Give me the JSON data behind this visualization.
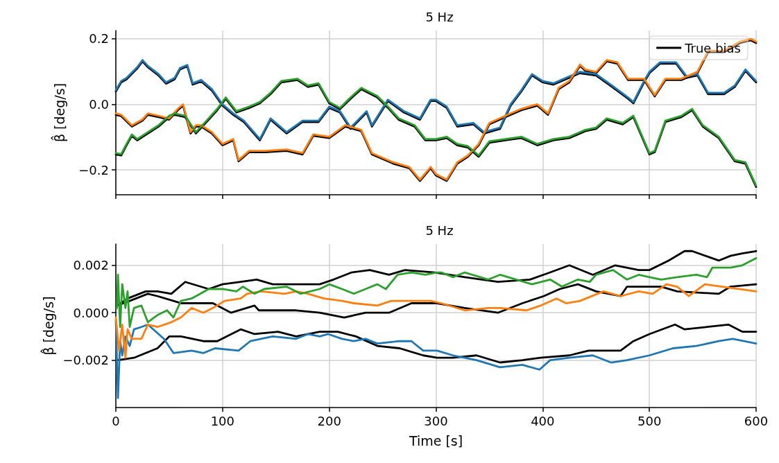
{
  "chart_data": [
    {
      "type": "line",
      "title": "5 Hz",
      "ylabel": "β̂ [deg/s]",
      "xlim": [
        0,
        600
      ],
      "xticks": [
        0,
        100,
        200,
        300,
        400,
        500,
        600
      ],
      "ylim": [
        -0.276,
        0.225
      ],
      "yticks": [
        {
          "value": -0.2,
          "label": "−0.2"
        },
        {
          "value": 0,
          "label": "0.0"
        },
        {
          "value": 0.2,
          "label": "0.2"
        }
      ],
      "grid": true,
      "legend": "top right",
      "tick_labels": "y",
      "series": [
        {
          "name": "True bias",
          "color": "#000000",
          "x": [
            0,
            5,
            10,
            20,
            25,
            30,
            40,
            47,
            55,
            60,
            67,
            72,
            80,
            90,
            100,
            110,
            120,
            135,
            145,
            160,
            175,
            190,
            200,
            210,
            220,
            235,
            240,
            255,
            270,
            285,
            295,
            300,
            310,
            320,
            335,
            345,
            360,
            370,
            380,
            390,
            400,
            410,
            420,
            430,
            435,
            450,
            465,
            480,
            485,
            495,
            500,
            510,
            525,
            535,
            545,
            555,
            570,
            580,
            590,
            600
          ],
          "values": [
            0.039,
            0.067,
            0.076,
            0.109,
            0.131,
            0.113,
            0.088,
            0.063,
            0.076,
            0.106,
            0.116,
            0.06,
            0.07,
            0.042,
            -0.004,
            -0.032,
            -0.054,
            -0.11,
            -0.047,
            -0.089,
            -0.054,
            -0.054,
            -0.011,
            -0.025,
            -0.075,
            -0.025,
            -0.068,
            0.01,
            -0.025,
            -0.047,
            0.01,
            0.01,
            -0.011,
            -0.068,
            -0.061,
            -0.089,
            -0.075,
            -0.004,
            0.039,
            0.088,
            0.067,
            0.06,
            0.074,
            0.088,
            0.095,
            0.088,
            0.053,
            0.017,
            0.003,
            0.067,
            0.095,
            0.124,
            0.124,
            0.081,
            0.088,
            0.031,
            0.031,
            0.053,
            0.102,
            0.067
          ]
        },
        {
          "color": "#000000",
          "x": [
            0,
            5,
            15,
            25,
            30,
            40,
            50,
            58,
            63,
            70,
            75,
            80,
            90,
            100,
            110,
            115,
            125,
            140,
            160,
            175,
            185,
            200,
            215,
            230,
            240,
            260,
            275,
            285,
            295,
            300,
            310,
            320,
            330,
            340,
            350,
            365,
            380,
            395,
            405,
            415,
            425,
            435,
            440,
            450,
            460,
            470,
            480,
            495,
            505,
            515,
            530,
            545,
            555,
            570,
            585,
            595,
            600
          ],
          "values": [
            -0.032,
            -0.036,
            -0.068,
            -0.05,
            -0.032,
            -0.039,
            -0.047,
            -0.018,
            -0.004,
            -0.089,
            -0.068,
            -0.068,
            -0.089,
            -0.125,
            -0.11,
            -0.174,
            -0.146,
            -0.146,
            -0.142,
            -0.153,
            -0.096,
            -0.103,
            -0.068,
            -0.082,
            -0.153,
            -0.181,
            -0.195,
            -0.234,
            -0.195,
            -0.217,
            -0.234,
            -0.181,
            -0.16,
            -0.125,
            -0.061,
            -0.039,
            -0.018,
            -0.004,
            -0.032,
            0.046,
            0.067,
            0.117,
            0.102,
            0.095,
            0.131,
            0.124,
            0.074,
            0.074,
            0.024,
            0.074,
            0.074,
            0.095,
            0.159,
            0.159,
            0.187,
            0.195,
            0.187
          ]
        },
        {
          "color": "#000000",
          "x": [
            0,
            5,
            10,
            15,
            20,
            30,
            40,
            50,
            55,
            65,
            75,
            85,
            95,
            103,
            113,
            125,
            135,
            145,
            155,
            170,
            180,
            190,
            200,
            210,
            220,
            230,
            245,
            255,
            265,
            280,
            290,
            300,
            310,
            320,
            330,
            340,
            350,
            365,
            380,
            395,
            410,
            425,
            440,
            450,
            460,
            475,
            485,
            500,
            505,
            515,
            530,
            540,
            550,
            565,
            580,
            590,
            600
          ],
          "values": [
            -0.153,
            -0.156,
            -0.125,
            -0.096,
            -0.11,
            -0.089,
            -0.068,
            -0.039,
            -0.032,
            -0.039,
            -0.089,
            -0.054,
            -0.018,
            0.017,
            -0.025,
            -0.011,
            0.003,
            0.031,
            0.067,
            0.074,
            0.053,
            0.06,
            0.003,
            -0.015,
            0.017,
            0.046,
            0.021,
            -0.011,
            -0.047,
            -0.068,
            -0.11,
            -0.11,
            -0.103,
            -0.125,
            -0.132,
            -0.16,
            -0.117,
            -0.11,
            -0.103,
            -0.125,
            -0.11,
            -0.103,
            -0.082,
            -0.075,
            -0.047,
            -0.061,
            -0.039,
            -0.153,
            -0.146,
            -0.054,
            -0.039,
            -0.018,
            -0.068,
            -0.103,
            -0.174,
            -0.181,
            -0.252
          ]
        },
        {
          "color": "#1f77b4",
          "x": [
            0,
            5,
            10,
            20,
            25,
            30,
            40,
            47,
            55,
            60,
            67,
            72,
            80,
            90,
            100,
            110,
            120,
            135,
            145,
            160,
            175,
            190,
            200,
            210,
            220,
            235,
            240,
            255,
            270,
            285,
            295,
            300,
            310,
            320,
            335,
            345,
            360,
            370,
            380,
            390,
            400,
            410,
            420,
            430,
            435,
            450,
            465,
            480,
            485,
            495,
            500,
            510,
            525,
            535,
            545,
            555,
            570,
            580,
            590,
            600
          ],
          "values": [
            0.043,
            0.071,
            0.08,
            0.113,
            0.135,
            0.117,
            0.092,
            0.067,
            0.08,
            0.11,
            0.12,
            0.064,
            0.074,
            0.046,
            0.0,
            -0.028,
            -0.05,
            -0.106,
            -0.043,
            -0.085,
            -0.05,
            -0.05,
            -0.007,
            -0.021,
            -0.071,
            -0.021,
            -0.064,
            0.014,
            -0.021,
            -0.043,
            0.014,
            0.014,
            -0.007,
            -0.064,
            -0.057,
            -0.085,
            -0.071,
            0.0,
            0.043,
            0.092,
            0.071,
            0.064,
            0.078,
            0.092,
            0.099,
            0.092,
            0.057,
            0.021,
            0.007,
            0.071,
            0.099,
            0.128,
            0.128,
            0.085,
            0.092,
            0.035,
            0.035,
            0.057,
            0.106,
            0.071
          ]
        },
        {
          "color": "#ff7f0e",
          "x": [
            0,
            5,
            15,
            25,
            30,
            40,
            50,
            58,
            63,
            70,
            75,
            80,
            90,
            100,
            110,
            115,
            125,
            140,
            160,
            175,
            185,
            200,
            215,
            230,
            240,
            260,
            275,
            285,
            295,
            300,
            310,
            320,
            330,
            340,
            350,
            365,
            380,
            395,
            405,
            415,
            425,
            435,
            440,
            450,
            460,
            470,
            480,
            495,
            505,
            515,
            530,
            545,
            555,
            570,
            585,
            595,
            600
          ],
          "values": [
            -0.028,
            -0.032,
            -0.064,
            -0.046,
            -0.028,
            -0.035,
            -0.043,
            -0.014,
            0.0,
            -0.085,
            -0.064,
            -0.064,
            -0.085,
            -0.121,
            -0.106,
            -0.17,
            -0.142,
            -0.142,
            -0.138,
            -0.149,
            -0.092,
            -0.099,
            -0.064,
            -0.078,
            -0.149,
            -0.177,
            -0.191,
            -0.23,
            -0.191,
            -0.213,
            -0.23,
            -0.177,
            -0.156,
            -0.121,
            -0.057,
            -0.035,
            -0.014,
            0.0,
            -0.028,
            0.05,
            0.071,
            0.121,
            0.106,
            0.099,
            0.135,
            0.128,
            0.078,
            0.078,
            0.028,
            0.078,
            0.078,
            0.099,
            0.163,
            0.163,
            0.191,
            0.199,
            0.191
          ]
        },
        {
          "color": "#2ca02c",
          "x": [
            0,
            5,
            10,
            15,
            20,
            30,
            40,
            50,
            55,
            65,
            75,
            85,
            95,
            103,
            113,
            125,
            135,
            145,
            155,
            170,
            180,
            190,
            200,
            210,
            220,
            230,
            245,
            255,
            265,
            280,
            290,
            300,
            310,
            320,
            330,
            340,
            350,
            365,
            380,
            395,
            410,
            425,
            440,
            450,
            460,
            475,
            485,
            500,
            505,
            515,
            530,
            540,
            550,
            565,
            580,
            590,
            600
          ],
          "values": [
            -0.149,
            -0.152,
            -0.121,
            -0.092,
            -0.106,
            -0.085,
            -0.064,
            -0.035,
            -0.028,
            -0.035,
            -0.085,
            -0.05,
            -0.014,
            0.021,
            -0.021,
            -0.007,
            0.007,
            0.035,
            0.071,
            0.078,
            0.057,
            0.064,
            0.007,
            -0.011,
            0.021,
            0.05,
            0.025,
            -0.007,
            -0.043,
            -0.064,
            -0.106,
            -0.106,
            -0.099,
            -0.121,
            -0.128,
            -0.156,
            -0.113,
            -0.106,
            -0.099,
            -0.121,
            -0.106,
            -0.099,
            -0.078,
            -0.071,
            -0.043,
            -0.057,
            -0.035,
            -0.149,
            -0.142,
            -0.05,
            -0.035,
            -0.014,
            -0.064,
            -0.099,
            -0.17,
            -0.177,
            -0.248
          ]
        }
      ]
    },
    {
      "type": "line",
      "title": "5 Hz",
      "xlabel": "Time [s]",
      "ylabel": "β̂ [deg/s]",
      "xlim": [
        0,
        600
      ],
      "xticks": [
        0,
        100,
        200,
        300,
        400,
        500,
        600
      ],
      "ylim": [
        -0.004,
        0.0029
      ],
      "yticks": [
        {
          "value": -0.002,
          "label": "−0.002"
        },
        {
          "value": 0,
          "label": "0.000"
        },
        {
          "value": 0.002,
          "label": "0.002"
        }
      ],
      "grid": true,
      "series": [
        {
          "color": "#000000",
          "x": [
            1,
            11,
            28,
            39,
            52,
            65,
            87,
            100,
            117,
            132,
            147,
            191,
            204,
            221,
            238,
            256,
            271,
            299,
            327,
            358,
            388,
            407,
            425,
            447,
            468,
            490,
            500,
            518,
            533,
            540,
            565,
            576,
            587,
            600
          ],
          "values": [
            0.0003,
            0.0006,
            0.0009,
            0.0009,
            0.0008,
            0.0013,
            0.001,
            0.0012,
            0.0013,
            0.0014,
            0.0012,
            0.0012,
            0.0014,
            0.0017,
            0.0018,
            0.0016,
            0.0018,
            0.0017,
            0.0015,
            0.0013,
            0.0014,
            0.0017,
            0.002,
            0.0016,
            0.002,
            0.0018,
            0.0018,
            0.0022,
            0.0026,
            0.0026,
            0.0022,
            0.0024,
            0.0025,
            0.0026
          ]
        },
        {
          "color": "#000000",
          "x": [
            1,
            13,
            30,
            39,
            54,
            61,
            91,
            108,
            130,
            134,
            169,
            191,
            214,
            234,
            256,
            277,
            301,
            327,
            358,
            381,
            401,
            416,
            433,
            450,
            473,
            479,
            511,
            526,
            565,
            576,
            600
          ],
          "values": [
            0.0003,
            0.0005,
            0.0008,
            0.0007,
            0.0005,
            0.0004,
            0.0004,
            0.0,
            0.0003,
            0.0001,
            0.0001,
            0.0,
            -0.0002,
            0.0,
            0.0,
            0.0004,
            0.0004,
            0.0002,
            0.0,
            0.0004,
            0.0007,
            0.001,
            0.0012,
            0.0009,
            0.0007,
            0.0011,
            0.0011,
            0.0009,
            0.0008,
            0.0011,
            0.0012
          ]
        },
        {
          "color": "#000000",
          "x": [
            2,
            17,
            39,
            50,
            61,
            82,
            95,
            117,
            130,
            152,
            169,
            191,
            208,
            225,
            245,
            266,
            288,
            301,
            316,
            338,
            360,
            381,
            398,
            425,
            443,
            473,
            485,
            500,
            524,
            533,
            554,
            574,
            587,
            600
          ],
          "values": [
            -0.002,
            -0.0019,
            -0.0015,
            -0.001,
            -0.001,
            -0.0012,
            -0.0012,
            -0.0007,
            -0.0009,
            -0.0008,
            -0.001,
            -0.0008,
            -0.0008,
            -0.001,
            -0.0014,
            -0.0015,
            -0.0018,
            -0.0019,
            -0.0019,
            -0.0018,
            -0.0021,
            -0.002,
            -0.0019,
            -0.0018,
            -0.0016,
            -0.0016,
            -0.0012,
            -0.0009,
            -0.0005,
            -0.0007,
            -0.0006,
            -0.0005,
            -0.0008,
            -0.0008
          ]
        },
        {
          "color": "#1f77b4",
          "x": [
            0,
            2,
            4,
            6,
            9,
            13,
            17,
            24,
            30,
            45,
            54,
            71,
            82,
            93,
            115,
            126,
            147,
            169,
            180,
            191,
            199,
            212,
            223,
            234,
            245,
            266,
            277,
            288,
            301,
            316,
            338,
            360,
            381,
            397,
            407,
            425,
            447,
            464,
            479,
            500,
            522,
            544,
            565,
            578,
            600
          ],
          "values": [
            -0.0003,
            -0.0036,
            -0.0012,
            -0.0018,
            -0.001,
            -0.0014,
            -0.0007,
            -0.0006,
            -0.0005,
            -0.0011,
            -0.0017,
            -0.0016,
            -0.0017,
            -0.0015,
            -0.0016,
            -0.0012,
            -0.001,
            -0.0011,
            -0.0009,
            -0.001,
            -0.0009,
            -0.0011,
            -0.0012,
            -0.0011,
            -0.0013,
            -0.0012,
            -0.0012,
            -0.0016,
            -0.0016,
            -0.0018,
            -0.002,
            -0.0023,
            -0.0022,
            -0.0024,
            -0.002,
            -0.0019,
            -0.0018,
            -0.0021,
            -0.002,
            -0.0018,
            -0.0015,
            -0.0014,
            -0.0012,
            -0.0011,
            -0.0013
          ]
        },
        {
          "color": "#ff7f0e",
          "x": [
            0,
            3,
            6,
            9,
            11,
            15,
            24,
            30,
            39,
            52,
            61,
            71,
            82,
            91,
            102,
            117,
            123,
            136,
            158,
            169,
            180,
            195,
            212,
            223,
            245,
            258,
            277,
            295,
            305,
            327,
            349,
            360,
            385,
            398,
            413,
            422,
            435,
            457,
            473,
            490,
            503,
            516,
            526,
            537,
            552,
            568,
            600
          ],
          "values": [
            -0.0002,
            -0.0016,
            -0.0005,
            -0.0019,
            -0.0007,
            -0.0011,
            -0.0011,
            -0.0005,
            -0.0006,
            -0.0004,
            -0.0002,
            0.0002,
            0.0,
            0.0002,
            0.0005,
            0.0006,
            0.0008,
            0.0009,
            0.0008,
            0.0009,
            0.0008,
            0.0006,
            0.0005,
            0.0004,
            0.0003,
            0.0005,
            0.0005,
            0.0005,
            0.0004,
            0.0001,
            0.0002,
            0.0002,
            0.0001,
            0.0003,
            0.0006,
            0.0004,
            0.0005,
            0.0009,
            0.0007,
            0.0009,
            0.0008,
            0.0012,
            0.0011,
            0.0007,
            0.0012,
            0.0011,
            0.0009
          ]
        },
        {
          "color": "#2ca02c",
          "x": [
            1,
            2,
            4,
            6,
            9,
            11,
            13,
            17,
            24,
            30,
            39,
            48,
            54,
            61,
            71,
            87,
            100,
            113,
            119,
            130,
            139,
            160,
            173,
            191,
            200,
            212,
            223,
            234,
            245,
            253,
            264,
            277,
            290,
            301,
            305,
            316,
            327,
            349,
            360,
            390,
            407,
            418,
            433,
            444,
            450,
            466,
            479,
            490,
            500,
            511,
            526,
            544,
            554,
            559,
            576,
            587,
            600
          ],
          "values": [
            0.0002,
            0.0016,
            -0.0006,
            0.0012,
            0.0002,
            0.0009,
            -0.0006,
            0.0002,
            0.0003,
            -0.0004,
            -0.0001,
            0.0001,
            -0.0002,
            0.0005,
            0.0006,
            0.001,
            0.001,
            0.0009,
            0.0011,
            0.0008,
            0.001,
            0.0011,
            0.0008,
            0.001,
            0.0012,
            0.001,
            0.0008,
            0.001,
            0.0012,
            0.001,
            0.0016,
            0.0017,
            0.0016,
            0.0017,
            0.0017,
            0.0015,
            0.0017,
            0.0014,
            0.0016,
            0.0012,
            0.0014,
            0.0011,
            0.0014,
            0.0013,
            0.0016,
            0.0018,
            0.0014,
            0.0016,
            0.0015,
            0.0014,
            0.0015,
            0.0016,
            0.0015,
            0.0019,
            0.0019,
            0.002,
            0.0023
          ]
        }
      ]
    }
  ]
}
